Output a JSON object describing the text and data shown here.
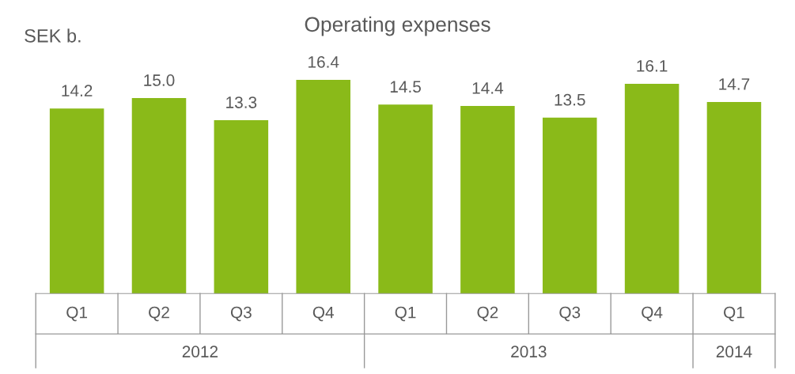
{
  "chart_data": {
    "type": "bar",
    "title": "Operating expenses",
    "ylabel": "SEK b.",
    "categories": [
      "Q1",
      "Q2",
      "Q3",
      "Q4",
      "Q1",
      "Q2",
      "Q3",
      "Q4",
      "Q1"
    ],
    "values": [
      14.2,
      15.0,
      13.3,
      16.4,
      14.5,
      14.4,
      13.5,
      16.1,
      14.7
    ],
    "color": "#8aba19",
    "value_labels": [
      "14.2",
      "15.0",
      "13.3",
      "16.4",
      "14.5",
      "14.4",
      "13.5",
      "16.1",
      "14.7"
    ],
    "annotations": [
      "2012",
      "2013",
      "2014"
    ]
  }
}
